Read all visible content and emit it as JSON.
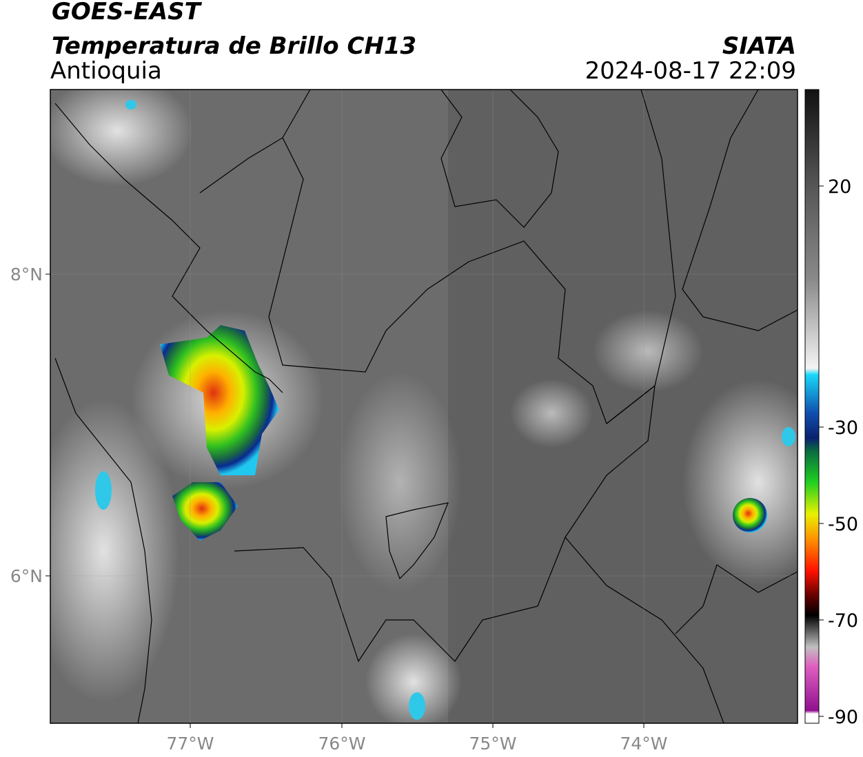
{
  "header": {
    "title": "GOES-EAST",
    "subtitle": "Temperatura de Brillo CH13",
    "region": "Antioquia",
    "source": "SIATA",
    "datetime": "2024-08-17 22:09"
  },
  "map": {
    "lat_labels": [
      "8°N",
      "6°N"
    ],
    "lon_labels": [
      "77°W",
      "76°W",
      "75°W",
      "74°W"
    ]
  },
  "colorbar": {
    "ticks": [
      20,
      -30,
      -50,
      -70,
      -90
    ]
  }
}
